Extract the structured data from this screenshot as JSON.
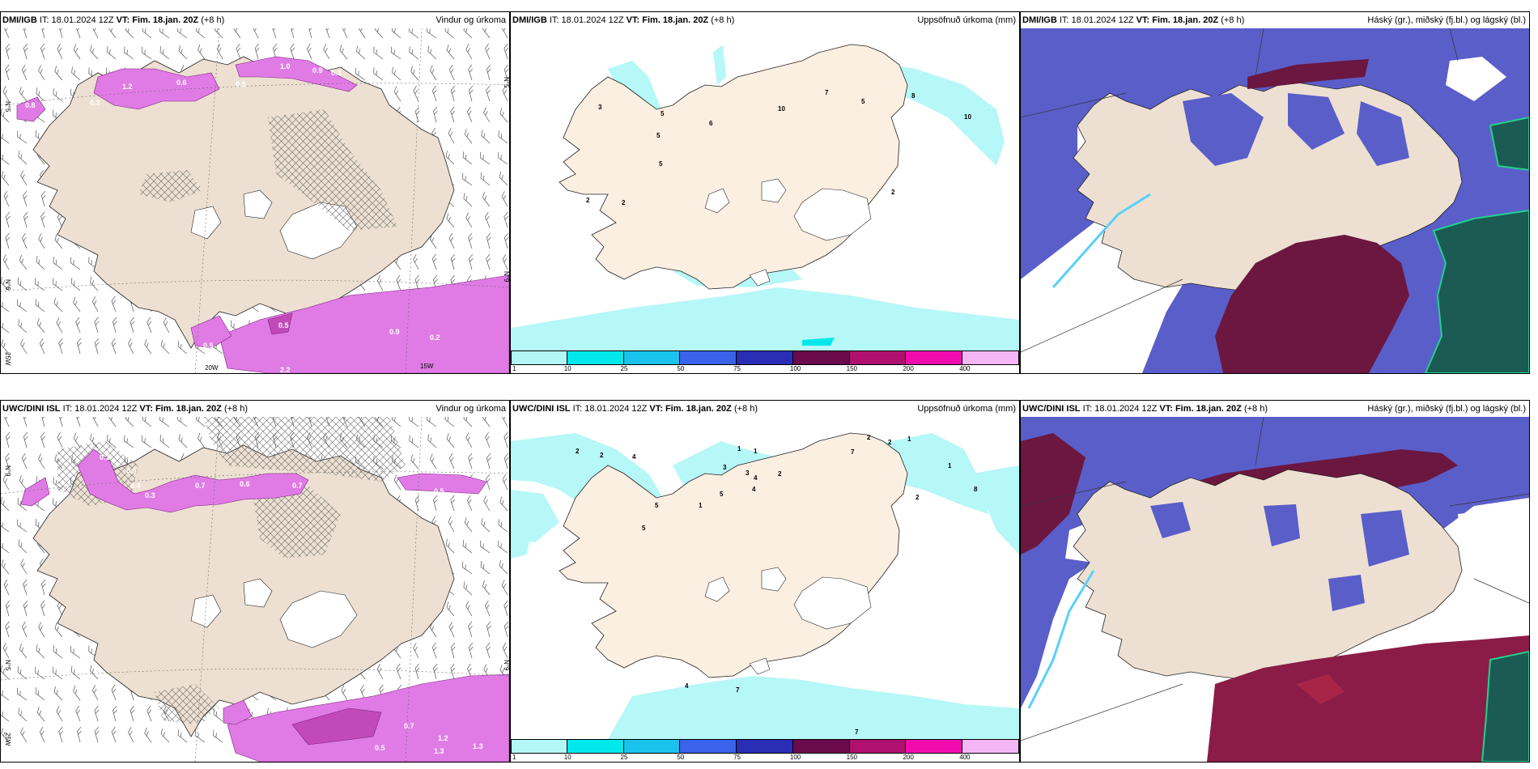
{
  "panels": [
    {
      "model": "DMI/IGB",
      "it_label": "IT:",
      "it": "18.01.2024 12Z",
      "vt_label": "VT:",
      "vt": "Fim. 18.jan. 20Z",
      "lead": "(+8 h)",
      "title": "Vindur og úrkoma"
    },
    {
      "model": "DMI/IGB",
      "it_label": "IT:",
      "it": "18.01.2024 12Z",
      "vt_label": "VT:",
      "vt": "Fim. 18.jan. 20Z",
      "lead": "(+8 h)",
      "title": "Uppsöfnuð úrkoma (mm)"
    },
    {
      "model": "DMI/IGB",
      "it_label": "IT:",
      "it": "18.01.2024 12Z",
      "vt_label": "VT:",
      "vt": "Fim. 18.jan. 20Z",
      "lead": "(+8 h)",
      "title": "Háský (gr.), miðský (fj.bl.) og lágský (bl.)"
    },
    {
      "model": "UWC/DINI ISL",
      "it_label": "IT:",
      "it": "18.01.2024 12Z",
      "vt_label": "VT:",
      "vt": "Fim. 18.jan. 20Z",
      "lead": "(+8 h)",
      "title": "Vindur og úrkoma"
    },
    {
      "model": "UWC/DINI ISL",
      "it_label": "IT:",
      "it": "18.01.2024 12Z",
      "vt_label": "VT:",
      "vt": "Fim. 18.jan. 20Z",
      "lead": "(+8 h)",
      "title": "Uppsöfnuð úrkoma (mm)"
    },
    {
      "model": "UWC/DINI ISL",
      "it_label": "IT:",
      "it": "18.01.2024 12Z",
      "vt_label": "VT:",
      "vt": "Fim. 18.jan. 20Z",
      "lead": "(+8 h)",
      "title": "Háský (gr.), miðský (fj.bl.) og lágský (bl.)"
    }
  ],
  "colorbar": {
    "ticks": [
      "1",
      "10",
      "25",
      "50",
      "75",
      "100",
      "150",
      "200",
      "400"
    ],
    "colors": [
      "#b4f7f7",
      "#00e8ec",
      "#19c3eb",
      "#3a62ea",
      "#2a2db5",
      "#6b0a4d",
      "#b0106f",
      "#f20cb0",
      "#f5b6f5"
    ]
  },
  "wind_labels": {
    "top": {
      "lat_left": [
        "N°5",
        "N°9",
        "N°6"
      ],
      "lat_right": [
        "N°5",
        "N°9"
      ],
      "lon": [
        "20W",
        "15W"
      ],
      "left_lon": "25W",
      "precip_values": [
        "1.0",
        "0.9",
        "0.3",
        "0.6",
        "0.6",
        "1.2",
        "0.5",
        "0.8",
        "0.3",
        "0.5",
        "0.9",
        "0.2",
        "0.5",
        "2.2"
      ]
    },
    "bottom": {
      "lat_left": [
        "N°9",
        "N°5"
      ],
      "lat_right": [
        "N°9"
      ],
      "left_lon": "25W",
      "precip_values": [
        "0.3",
        "0.5",
        "0.4",
        "0.3",
        "0.6",
        "0.7",
        "0.7",
        "0.5",
        "0.7",
        "1.2",
        "1.3",
        "1.3",
        "0.5"
      ]
    }
  },
  "accum_labels": {
    "top": [
      "3",
      "5",
      "5",
      "5",
      "6",
      "10",
      "7",
      "5",
      "8",
      "10",
      "2",
      "2",
      "2"
    ],
    "bottom": [
      "2",
      "2",
      "4",
      "1",
      "1",
      "3",
      "3",
      "4",
      "4",
      "2",
      "7",
      "2",
      "2",
      "1",
      "1",
      "8",
      "2",
      "5",
      "5",
      "1",
      "5",
      "4",
      "7",
      "7"
    ]
  },
  "map_colors": {
    "land": "#ede0d2",
    "land_light": "#fbefe2",
    "glacier": "#ffffff",
    "ocean": "#ffffff",
    "precip_cyan": "#b6f7f7",
    "high_cloud": "#6b1740",
    "mid_cloud": "#5a5ec9",
    "low_cloud": "#1c5a54",
    "pink": "#e07be6"
  }
}
